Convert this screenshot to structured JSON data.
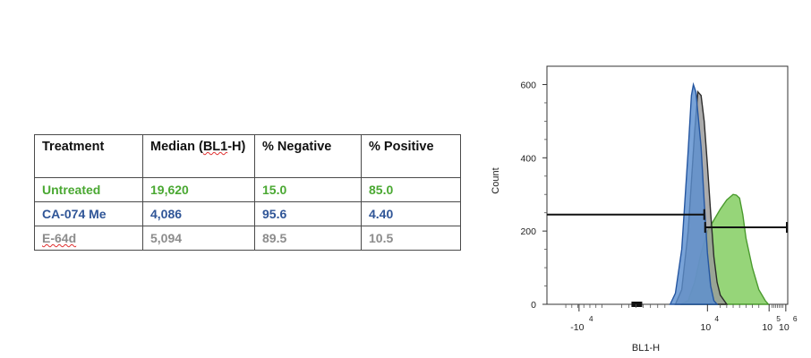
{
  "table": {
    "headers": [
      "Treatment",
      "Median (BL1-H)",
      "% Negative",
      "% Positive"
    ],
    "rows": [
      {
        "cells": [
          "Untreated",
          "19,620",
          "15.0",
          "85.0"
        ],
        "color": "#4aa832"
      },
      {
        "cells": [
          "CA-074 Me",
          "4,086",
          "95.6",
          "4.40"
        ],
        "color": "#2f5597"
      },
      {
        "cells": [
          "E-64d",
          "5,094",
          "89.5",
          "10.5"
        ],
        "color": "#8c8c8c"
      }
    ]
  },
  "chart_data": {
    "type": "area",
    "xlabel": "BL1-H",
    "ylabel": "Count",
    "ylim": [
      0,
      650
    ],
    "yticks": [
      0,
      200,
      400,
      600
    ],
    "xscale": "biexponential",
    "xticks": [
      {
        "base": "-10",
        "exp": "4"
      },
      {
        "base": "10",
        "exp": "4"
      },
      {
        "base": "10",
        "exp": "5"
      },
      {
        "base": "10",
        "exp": "6"
      }
    ],
    "gates": [
      {
        "label": "% Negative",
        "y": 245
      },
      {
        "label": "% Positive",
        "y": 210
      }
    ],
    "series": [
      {
        "name": "Untreated",
        "fill": "#7fcc5c",
        "stroke": "#4a9a2e",
        "points": [
          [
            0.58,
            0
          ],
          [
            0.7,
            10
          ],
          [
            0.8,
            60
          ],
          [
            0.9,
            140
          ],
          [
            1.0,
            200
          ],
          [
            1.1,
            230
          ],
          [
            1.2,
            260
          ],
          [
            1.3,
            285
          ],
          [
            1.4,
            300
          ],
          [
            1.45,
            298
          ],
          [
            1.5,
            290
          ],
          [
            1.55,
            245
          ],
          [
            1.6,
            180
          ],
          [
            1.7,
            100
          ],
          [
            1.8,
            40
          ],
          [
            1.9,
            10
          ],
          [
            1.95,
            0
          ]
        ]
      },
      {
        "name": "E-64d",
        "fill": "#9a9a9a",
        "stroke": "#2a2a2a",
        "points": [
          [
            0.5,
            0
          ],
          [
            0.6,
            40
          ],
          [
            0.7,
            200
          ],
          [
            0.8,
            470
          ],
          [
            0.85,
            580
          ],
          [
            0.9,
            570
          ],
          [
            0.95,
            500
          ],
          [
            1.0,
            380
          ],
          [
            1.05,
            250
          ],
          [
            1.1,
            130
          ],
          [
            1.15,
            60
          ],
          [
            1.2,
            25
          ],
          [
            1.3,
            0
          ]
        ]
      },
      {
        "name": "CA-074 Me",
        "fill": "#5b8fd0",
        "stroke": "#2556a0",
        "points": [
          [
            0.42,
            0
          ],
          [
            0.5,
            30
          ],
          [
            0.6,
            150
          ],
          [
            0.7,
            420
          ],
          [
            0.75,
            570
          ],
          [
            0.78,
            600
          ],
          [
            0.82,
            580
          ],
          [
            0.9,
            430
          ],
          [
            0.95,
            280
          ],
          [
            1.0,
            140
          ],
          [
            1.05,
            50
          ],
          [
            1.1,
            10
          ],
          [
            1.15,
            0
          ]
        ]
      }
    ]
  }
}
